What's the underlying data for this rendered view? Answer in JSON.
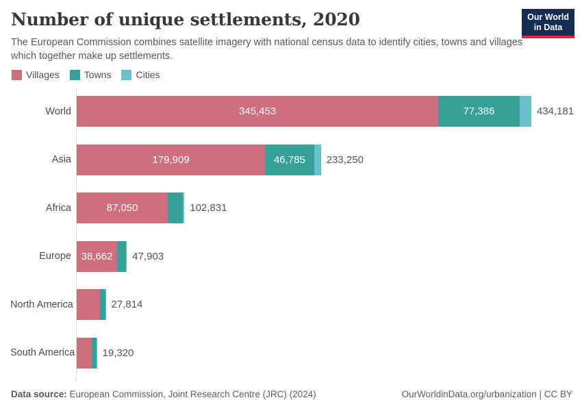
{
  "header": {
    "title": "Number of unique settlements, 2020",
    "subtitle": "The European Commission combines satellite imagery with national census data to identify cities, towns and villages which together make up settlements.",
    "logo": {
      "line1": "Our World",
      "line2": "in Data"
    }
  },
  "colors": {
    "villages": "#cf6e7e",
    "towns": "#37a099",
    "cities": "#69c1cb",
    "logo_navy": "#132e52",
    "logo_red": "#e2263c",
    "axis": "#dadada"
  },
  "legend": [
    {
      "label": "Villages",
      "color": "#cf6e7e"
    },
    {
      "label": "Towns",
      "color": "#37a099"
    },
    {
      "label": "Cities",
      "color": "#69c1cb"
    }
  ],
  "chart_data": {
    "type": "bar",
    "orientation": "horizontal",
    "stacked": true,
    "grid": false,
    "legend_position": "top",
    "categories": [
      "World",
      "Asia",
      "Africa",
      "Europe",
      "North America",
      "South America"
    ],
    "series": [
      {
        "name": "Villages",
        "color": "#cf6e7e",
        "values": [
          345453,
          179909,
          87050,
          38662,
          22300,
          14400
        ]
      },
      {
        "name": "Towns",
        "color": "#37a099",
        "values": [
          77386,
          46785,
          14200,
          8400,
          4900,
          4300
        ]
      },
      {
        "name": "Cities",
        "color": "#69c1cb",
        "values": [
          11342,
          6556,
          1581,
          841,
          614,
          620
        ]
      }
    ],
    "totals": [
      434181,
      233250,
      102831,
      47903,
      27814,
      19320
    ],
    "total_labels": [
      "434,181",
      "233,250",
      "102,831",
      "47,903",
      "27,814",
      "19,320"
    ],
    "segment_labels": [
      [
        "345,453",
        "77,386",
        ""
      ],
      [
        "179,909",
        "46,785",
        ""
      ],
      [
        "87,050",
        "",
        ""
      ],
      [
        "38,662",
        "",
        ""
      ],
      [
        "",
        "",
        ""
      ],
      [
        "",
        "",
        ""
      ]
    ],
    "xmax": 434181,
    "xlabel": "",
    "ylabel": ""
  },
  "footer": {
    "source_label": "Data source:",
    "source_text": " European Commission, Joint Research Centre (JRC) (2024)",
    "right_text": "OurWorldinData.org/urbanization | CC BY"
  }
}
